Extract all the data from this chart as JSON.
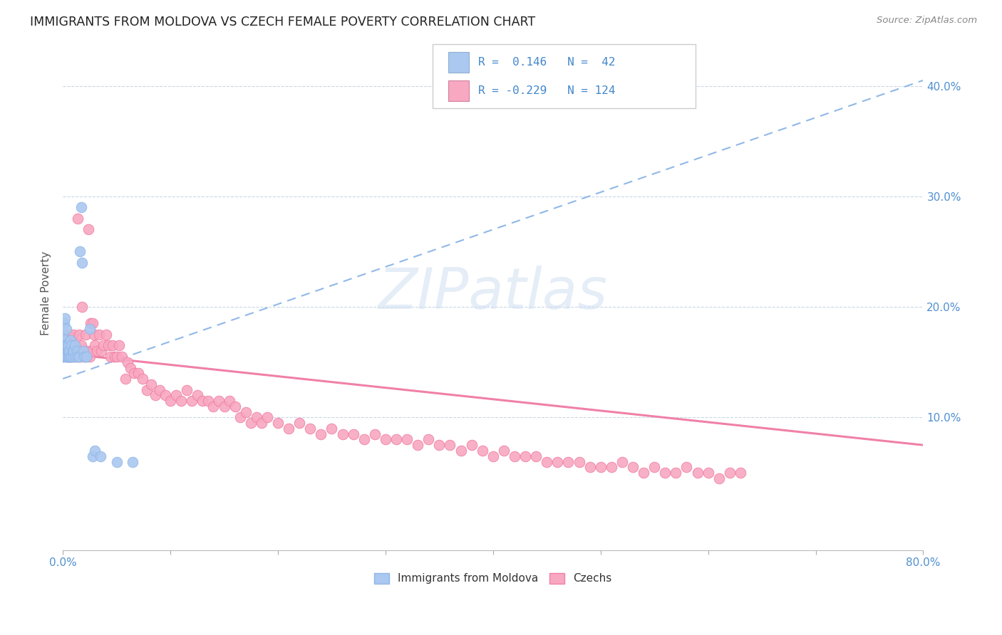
{
  "title": "IMMIGRANTS FROM MOLDOVA VS CZECH FEMALE POVERTY CORRELATION CHART",
  "source": "Source: ZipAtlas.com",
  "ylabel": "Female Poverty",
  "xlim": [
    0.0,
    0.8
  ],
  "ylim": [
    -0.02,
    0.445
  ],
  "blue_color": "#aac8f0",
  "pink_color": "#f8a8c0",
  "trendline_blue_color": "#90b8e8",
  "trendline_pink_color": "#f080a8",
  "background_color": "#ffffff",
  "blue_scatter_x": [
    0.0,
    0.0,
    0.001,
    0.001,
    0.001,
    0.002,
    0.002,
    0.002,
    0.003,
    0.003,
    0.003,
    0.004,
    0.004,
    0.005,
    0.005,
    0.005,
    0.006,
    0.006,
    0.007,
    0.007,
    0.008,
    0.008,
    0.009,
    0.01,
    0.01,
    0.011,
    0.012,
    0.013,
    0.014,
    0.015,
    0.016,
    0.017,
    0.018,
    0.019,
    0.02,
    0.022,
    0.025,
    0.028,
    0.03,
    0.035,
    0.05,
    0.065
  ],
  "blue_scatter_y": [
    0.155,
    0.175,
    0.16,
    0.17,
    0.185,
    0.155,
    0.165,
    0.19,
    0.155,
    0.165,
    0.18,
    0.155,
    0.165,
    0.155,
    0.16,
    0.165,
    0.155,
    0.16,
    0.155,
    0.17,
    0.155,
    0.165,
    0.16,
    0.155,
    0.16,
    0.165,
    0.155,
    0.16,
    0.155,
    0.155,
    0.25,
    0.29,
    0.24,
    0.16,
    0.155,
    0.155,
    0.18,
    0.065,
    0.07,
    0.065,
    0.06,
    0.06
  ],
  "pink_scatter_x": [
    0.0,
    0.001,
    0.002,
    0.003,
    0.004,
    0.004,
    0.005,
    0.005,
    0.006,
    0.006,
    0.007,
    0.007,
    0.008,
    0.008,
    0.009,
    0.01,
    0.01,
    0.011,
    0.012,
    0.013,
    0.014,
    0.015,
    0.015,
    0.016,
    0.017,
    0.018,
    0.019,
    0.02,
    0.021,
    0.022,
    0.023,
    0.024,
    0.025,
    0.026,
    0.027,
    0.028,
    0.029,
    0.03,
    0.032,
    0.034,
    0.036,
    0.038,
    0.04,
    0.042,
    0.044,
    0.046,
    0.048,
    0.05,
    0.052,
    0.055,
    0.058,
    0.06,
    0.063,
    0.066,
    0.07,
    0.074,
    0.078,
    0.082,
    0.086,
    0.09,
    0.095,
    0.1,
    0.105,
    0.11,
    0.115,
    0.12,
    0.125,
    0.13,
    0.135,
    0.14,
    0.145,
    0.15,
    0.155,
    0.16,
    0.165,
    0.17,
    0.175,
    0.18,
    0.185,
    0.19,
    0.2,
    0.21,
    0.22,
    0.23,
    0.24,
    0.25,
    0.26,
    0.27,
    0.28,
    0.29,
    0.3,
    0.31,
    0.32,
    0.33,
    0.34,
    0.35,
    0.36,
    0.37,
    0.38,
    0.39,
    0.4,
    0.41,
    0.42,
    0.43,
    0.44,
    0.45,
    0.46,
    0.47,
    0.48,
    0.49,
    0.5,
    0.51,
    0.52,
    0.53,
    0.54,
    0.55,
    0.56,
    0.57,
    0.58,
    0.59,
    0.6,
    0.61,
    0.62,
    0.63
  ],
  "pink_scatter_y": [
    0.155,
    0.16,
    0.16,
    0.17,
    0.155,
    0.165,
    0.155,
    0.175,
    0.155,
    0.165,
    0.155,
    0.17,
    0.155,
    0.165,
    0.16,
    0.155,
    0.175,
    0.16,
    0.165,
    0.155,
    0.28,
    0.155,
    0.175,
    0.155,
    0.165,
    0.2,
    0.16,
    0.155,
    0.175,
    0.155,
    0.16,
    0.27,
    0.155,
    0.185,
    0.16,
    0.185,
    0.175,
    0.165,
    0.16,
    0.175,
    0.16,
    0.165,
    0.175,
    0.165,
    0.155,
    0.165,
    0.155,
    0.155,
    0.165,
    0.155,
    0.135,
    0.15,
    0.145,
    0.14,
    0.14,
    0.135,
    0.125,
    0.13,
    0.12,
    0.125,
    0.12,
    0.115,
    0.12,
    0.115,
    0.125,
    0.115,
    0.12,
    0.115,
    0.115,
    0.11,
    0.115,
    0.11,
    0.115,
    0.11,
    0.1,
    0.105,
    0.095,
    0.1,
    0.095,
    0.1,
    0.095,
    0.09,
    0.095,
    0.09,
    0.085,
    0.09,
    0.085,
    0.085,
    0.08,
    0.085,
    0.08,
    0.08,
    0.08,
    0.075,
    0.08,
    0.075,
    0.075,
    0.07,
    0.075,
    0.07,
    0.065,
    0.07,
    0.065,
    0.065,
    0.065,
    0.06,
    0.06,
    0.06,
    0.06,
    0.055,
    0.055,
    0.055,
    0.06,
    0.055,
    0.05,
    0.055,
    0.05,
    0.05,
    0.055,
    0.05,
    0.05,
    0.045,
    0.05,
    0.05
  ],
  "blue_trend_x": [
    0.0,
    0.8
  ],
  "blue_trend_y": [
    0.135,
    0.405
  ],
  "pink_trend_x": [
    0.0,
    0.8
  ],
  "pink_trend_y": [
    0.158,
    0.075
  ],
  "ytick_vals": [
    0.1,
    0.2,
    0.3,
    0.4
  ],
  "ytick_labels": [
    "10.0%",
    "20.0%",
    "30.0%",
    "40.0%"
  ],
  "xtick_left_label": "0.0%",
  "xtick_right_label": "80.0%",
  "legend_r1_text": "R =  0.146   N =  42",
  "legend_r2_text": "R = -0.229   N = 124"
}
